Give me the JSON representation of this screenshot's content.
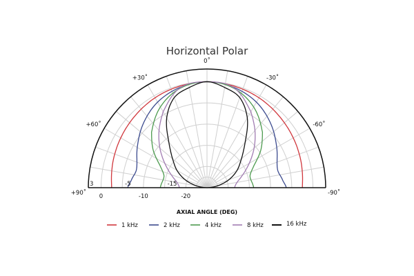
{
  "chart_data": {
    "type": "polar",
    "title": "Horizontal Polar",
    "xlabel": "AXIAL ANGLE (DEG)",
    "angle_range": [
      -90,
      90
    ],
    "radial_range_db": [
      -25,
      3
    ],
    "radial_rings": [
      3,
      0,
      -5,
      -10,
      -15,
      -20
    ],
    "radial_tick_labels": [
      "3",
      "0",
      "-5",
      "-10",
      "-15",
      "-20"
    ],
    "angle_ticks": [
      {
        "angle": 0,
        "label": "0˚"
      },
      {
        "angle": 30,
        "label": "+30˚"
      },
      {
        "angle": -30,
        "label": "-30˚"
      },
      {
        "angle": 60,
        "label": "+60˚"
      },
      {
        "angle": -60,
        "label": "-60˚"
      },
      {
        "angle": 90,
        "label": "+90˚"
      },
      {
        "angle": -90,
        "label": "-90˚"
      }
    ],
    "spoke_step_deg": 10,
    "grid": true,
    "legend_position": "bottom",
    "symmetric": true,
    "series": [
      {
        "name": "1 kHz",
        "color": "#d0363c",
        "angles": [
          0,
          15,
          30,
          45,
          60,
          75,
          90
        ],
        "values": [
          0,
          -0.2,
          -0.5,
          -1,
          -1.5,
          -2,
          -2.5
        ]
      },
      {
        "name": "2 kHz",
        "color": "#3b4a8e",
        "angles": [
          0,
          15,
          30,
          45,
          60,
          75,
          85,
          90
        ],
        "values": [
          0,
          -0.5,
          -1.7,
          -3.7,
          -6,
          -7.8,
          -7,
          -6.3
        ]
      },
      {
        "name": "4 kHz",
        "color": "#4c9a4e",
        "angles": [
          0,
          15,
          30,
          45,
          55,
          65,
          75,
          90
        ],
        "values": [
          0,
          -0.7,
          -3,
          -6.5,
          -9.5,
          -12.8,
          -14.5,
          -14
        ]
      },
      {
        "name": "8 kHz",
        "color": "#a17cb2",
        "angles": [
          0,
          15,
          30,
          40,
          50,
          60,
          70,
          80,
          90
        ],
        "values": [
          0,
          -0.6,
          -4.3,
          -7.4,
          -10.5,
          -13.5,
          -16,
          -17.8,
          -18.5
        ]
      },
      {
        "name": "16 kHz",
        "color": "#111111",
        "angles": [
          0,
          10,
          20,
          30,
          40,
          50,
          60,
          70,
          80,
          90
        ],
        "values": [
          0,
          -1,
          -2.4,
          -6,
          -11,
          -14.4,
          -16.8,
          -19.5,
          -22.5,
          -25
        ]
      }
    ]
  }
}
